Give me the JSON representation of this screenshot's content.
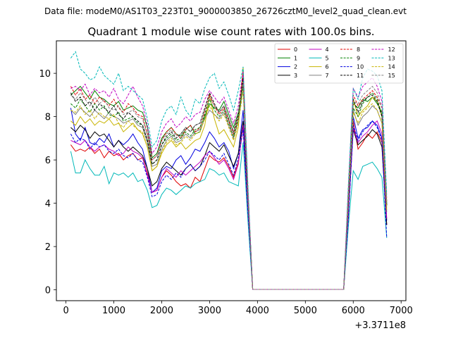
{
  "suptitle": "Data file: modeM0/AS1T03_223T01_9000003850_26726cztM0_level2_quad_clean.evt",
  "chart_data": {
    "type": "line",
    "title": "Quadrant 1 module wise count rates with 100.0s bins.",
    "xlabel": "",
    "ylabel": "",
    "x_offset_label": "+3.3711e8",
    "xlim": [
      -200,
      7100
    ],
    "ylim": [
      -0.5,
      11.5
    ],
    "xticks": [
      0,
      1000,
      2000,
      3000,
      4000,
      5000,
      6000,
      7000
    ],
    "yticks": [
      0,
      2,
      4,
      6,
      8,
      10
    ],
    "grid": false,
    "legend_placement": "top-right",
    "x": [
      100,
      200,
      300,
      400,
      500,
      600,
      700,
      800,
      900,
      1000,
      1100,
      1200,
      1300,
      1400,
      1500,
      1600,
      1700,
      1800,
      1900,
      2000,
      2100,
      2200,
      2300,
      2400,
      2500,
      2600,
      2700,
      2800,
      2900,
      3000,
      3100,
      3200,
      3300,
      3400,
      3500,
      3600,
      3700,
      3800,
      3900,
      4000,
      4500,
      5000,
      5500,
      5800,
      5900,
      6000,
      6100,
      6200,
      6300,
      6400,
      6500,
      6600,
      6700
    ],
    "series": [
      {
        "name": "0",
        "color": "#e00000",
        "dash": "solid",
        "values": [
          6.7,
          6.4,
          6.5,
          6.4,
          6.6,
          6.3,
          6.5,
          6.1,
          6.4,
          6.2,
          6.3,
          6.0,
          6.2,
          6.3,
          6.0,
          6.1,
          5.4,
          4.5,
          4.6,
          5.2,
          5.5,
          5.3,
          5.0,
          4.8,
          4.9,
          4.7,
          5.2,
          5.0,
          5.6,
          6.2,
          6.0,
          5.9,
          6.1,
          5.7,
          5.2,
          5.9,
          7.5,
          3.5,
          0.02,
          0.02,
          0.02,
          0.02,
          0.02,
          0.02,
          3.5,
          7.8,
          6.5,
          6.8,
          7.2,
          7.0,
          7.3,
          6.8,
          3.0
        ]
      },
      {
        "name": "1",
        "color": "#008000",
        "dash": "solid",
        "values": [
          9.0,
          9.2,
          9.4,
          9.1,
          8.8,
          9.2,
          8.9,
          8.8,
          8.6,
          8.5,
          8.7,
          8.3,
          8.4,
          8.5,
          8.3,
          8.2,
          7.5,
          6.1,
          6.3,
          7.0,
          7.3,
          7.5,
          7.2,
          7.1,
          7.4,
          7.6,
          7.2,
          7.3,
          8.0,
          8.6,
          8.4,
          8.3,
          8.7,
          8.1,
          7.5,
          8.2,
          9.6,
          4.5,
          0.02,
          0.02,
          0.02,
          0.02,
          0.02,
          0.02,
          4.5,
          8.6,
          8.4,
          8.8,
          8.7,
          8.9,
          8.6,
          8.2,
          4.0
        ]
      },
      {
        "name": "2",
        "color": "#0000e0",
        "dash": "solid",
        "values": [
          8.4,
          7.2,
          6.9,
          7.5,
          6.8,
          6.7,
          7.0,
          6.8,
          7.2,
          6.6,
          6.9,
          6.7,
          6.9,
          7.2,
          6.8,
          6.5,
          5.6,
          4.5,
          4.7,
          5.5,
          5.7,
          5.6,
          6.0,
          6.2,
          5.8,
          6.1,
          6.5,
          6.4,
          6.8,
          7.3,
          7.0,
          6.6,
          6.8,
          6.4,
          5.6,
          6.3,
          8.3,
          4.0,
          0.02,
          0.02,
          0.02,
          0.02,
          0.02,
          0.02,
          3.8,
          8.0,
          7.0,
          7.4,
          7.5,
          7.8,
          7.6,
          7.0,
          3.2
        ]
      },
      {
        "name": "3",
        "color": "#000000",
        "dash": "solid",
        "values": [
          7.5,
          7.3,
          7.6,
          7.4,
          7.0,
          7.3,
          7.1,
          7.2,
          6.9,
          6.6,
          6.9,
          6.6,
          6.4,
          6.6,
          6.4,
          6.2,
          5.6,
          4.8,
          5.0,
          5.6,
          5.9,
          5.7,
          5.5,
          5.3,
          5.6,
          5.8,
          5.5,
          5.7,
          6.2,
          6.8,
          6.6,
          6.4,
          6.7,
          6.2,
          5.7,
          6.3,
          7.8,
          3.9,
          0.02,
          0.02,
          0.02,
          0.02,
          0.02,
          0.02,
          3.6,
          7.4,
          6.7,
          6.9,
          7.1,
          7.4,
          7.2,
          6.6,
          3.0
        ]
      },
      {
        "name": "4",
        "color": "#c000c0",
        "dash": "solid",
        "values": [
          6.9,
          6.8,
          6.7,
          6.9,
          6.6,
          6.4,
          6.6,
          6.7,
          6.5,
          6.4,
          6.2,
          6.3,
          6.6,
          6.4,
          6.3,
          6.1,
          5.3,
          4.5,
          4.6,
          5.2,
          5.6,
          5.4,
          5.2,
          5.5,
          5.3,
          5.5,
          5.7,
          5.9,
          6.2,
          6.4,
          6.1,
          5.8,
          6.0,
          5.6,
          5.1,
          5.8,
          7.6,
          3.7,
          0.02,
          0.02,
          0.02,
          0.02,
          0.02,
          0.02,
          3.5,
          7.5,
          6.8,
          7.1,
          7.3,
          7.6,
          7.8,
          7.2,
          3.3
        ]
      },
      {
        "name": "5",
        "color": "#00b8b8",
        "dash": "solid",
        "values": [
          6.4,
          5.4,
          5.4,
          6.0,
          5.6,
          5.3,
          5.3,
          5.7,
          4.9,
          5.4,
          5.3,
          5.4,
          5.2,
          5.4,
          5.0,
          5.1,
          4.6,
          3.8,
          3.9,
          4.4,
          4.7,
          4.6,
          4.4,
          4.6,
          4.8,
          4.7,
          4.9,
          5.0,
          5.1,
          5.6,
          5.5,
          5.3,
          5.4,
          5.0,
          4.9,
          4.8,
          6.8,
          3.2,
          0.02,
          0.02,
          0.02,
          0.02,
          0.02,
          0.02,
          3.0,
          5.5,
          5.1,
          5.7,
          5.8,
          5.9,
          5.6,
          5.2,
          2.4
        ]
      },
      {
        "name": "6",
        "color": "#c8b400",
        "dash": "solid",
        "values": [
          7.8,
          7.6,
          8.0,
          7.7,
          7.9,
          7.6,
          7.8,
          7.7,
          7.9,
          7.6,
          7.7,
          7.3,
          7.5,
          7.7,
          7.4,
          7.2,
          6.6,
          5.5,
          5.7,
          6.3,
          6.7,
          6.9,
          6.6,
          6.8,
          6.5,
          6.7,
          6.9,
          7.0,
          7.6,
          9.0,
          7.9,
          7.2,
          7.4,
          7.0,
          6.6,
          7.5,
          10.3,
          4.6,
          0.02,
          0.02,
          0.02,
          0.02,
          0.02,
          0.02,
          4.3,
          8.8,
          8.0,
          8.3,
          8.5,
          8.9,
          8.7,
          8.0,
          3.8
        ]
      },
      {
        "name": "7",
        "color": "#808080",
        "dash": "solid",
        "values": [
          8.3,
          8.1,
          8.4,
          8.2,
          8.0,
          8.3,
          8.1,
          7.9,
          8.2,
          8.0,
          7.9,
          7.7,
          7.8,
          7.9,
          7.6,
          7.5,
          6.8,
          5.7,
          5.8,
          6.5,
          6.9,
          7.1,
          6.8,
          6.9,
          7.2,
          7.0,
          7.3,
          7.4,
          7.9,
          8.3,
          8.1,
          7.9,
          8.2,
          7.6,
          7.0,
          7.8,
          9.5,
          4.3,
          0.02,
          0.02,
          0.02,
          0.02,
          0.02,
          0.02,
          4.2,
          8.3,
          7.6,
          8.0,
          8.2,
          8.5,
          8.3,
          7.7,
          3.6
        ]
      },
      {
        "name": "8",
        "color": "#e00000",
        "dash": "dashed",
        "values": [
          9.4,
          9.0,
          9.3,
          8.8,
          9.0,
          8.6,
          8.9,
          8.7,
          8.5,
          8.8,
          8.4,
          8.2,
          8.6,
          8.4,
          8.1,
          8.0,
          7.2,
          6.0,
          6.2,
          6.9,
          7.3,
          7.5,
          7.2,
          7.0,
          7.4,
          7.6,
          7.3,
          7.5,
          8.2,
          9.0,
          8.5,
          8.1,
          8.4,
          7.8,
          7.2,
          8.0,
          10.0,
          4.6,
          0.02,
          0.02,
          0.02,
          0.02,
          0.02,
          0.02,
          4.6,
          9.0,
          8.5,
          8.8,
          9.0,
          9.2,
          8.9,
          8.4,
          4.1
        ]
      },
      {
        "name": "9",
        "color": "#008000",
        "dash": "dashed",
        "values": [
          8.6,
          8.4,
          8.8,
          8.5,
          8.2,
          8.6,
          8.3,
          8.5,
          8.1,
          8.0,
          8.2,
          7.8,
          7.9,
          8.0,
          7.7,
          7.6,
          6.9,
          5.8,
          6.0,
          6.7,
          7.0,
          7.2,
          6.9,
          7.0,
          7.3,
          7.1,
          7.4,
          7.5,
          8.1,
          8.8,
          8.3,
          8.0,
          8.3,
          7.7,
          7.1,
          7.9,
          9.4,
          4.4,
          0.02,
          0.02,
          0.02,
          0.02,
          0.02,
          0.02,
          4.4,
          8.4,
          8.0,
          8.6,
          8.9,
          9.1,
          8.8,
          8.1,
          3.9
        ]
      },
      {
        "name": "10",
        "color": "#0000e0",
        "dash": "dashed",
        "values": [
          7.2,
          6.8,
          7.0,
          6.9,
          6.5,
          6.8,
          6.6,
          6.7,
          6.4,
          6.3,
          6.5,
          6.2,
          6.1,
          6.3,
          6.0,
          5.9,
          5.2,
          4.3,
          4.4,
          5.0,
          5.3,
          5.1,
          5.4,
          5.2,
          5.6,
          5.8,
          5.5,
          5.7,
          6.0,
          6.4,
          6.2,
          6.0,
          6.3,
          5.8,
          5.3,
          6.1,
          7.4,
          3.6,
          0.02,
          0.02,
          0.02,
          0.02,
          0.02,
          0.02,
          3.4,
          7.6,
          6.9,
          7.3,
          7.6,
          7.8,
          7.5,
          6.9,
          2.4
        ]
      },
      {
        "name": "11",
        "color": "#000000",
        "dash": "dashed",
        "values": [
          9.1,
          8.7,
          8.9,
          8.5,
          8.7,
          8.3,
          8.6,
          8.4,
          8.2,
          8.5,
          8.1,
          7.9,
          8.2,
          8.0,
          7.8,
          7.6,
          6.9,
          5.8,
          6.0,
          6.7,
          7.1,
          7.3,
          7.0,
          7.2,
          7.5,
          7.3,
          7.6,
          7.7,
          8.4,
          9.1,
          8.6,
          8.2,
          8.5,
          7.9,
          7.3,
          8.1,
          9.8,
          4.5,
          0.02,
          0.02,
          0.02,
          0.02,
          0.02,
          0.02,
          4.5,
          8.8,
          8.2,
          8.7,
          8.9,
          9.0,
          8.7,
          8.0,
          3.9
        ]
      },
      {
        "name": "12",
        "color": "#c000c0",
        "dash": "dashed",
        "values": [
          9.3,
          9.4,
          9.2,
          9.5,
          9.0,
          9.3,
          9.1,
          9.2,
          8.9,
          9.3,
          8.8,
          8.6,
          9.0,
          9.4,
          8.9,
          8.5,
          7.6,
          6.3,
          6.6,
          7.3,
          7.7,
          7.9,
          7.5,
          7.7,
          8.0,
          7.8,
          8.1,
          8.2,
          8.8,
          9.2,
          8.9,
          8.6,
          8.9,
          8.3,
          7.7,
          8.5,
          10.1,
          4.7,
          0.02,
          0.02,
          0.02,
          0.02,
          0.02,
          0.02,
          4.8,
          9.3,
          8.9,
          9.4,
          9.6,
          9.8,
          9.4,
          8.7,
          4.2
        ]
      },
      {
        "name": "13",
        "color": "#00b8b8",
        "dash": "dashed",
        "values": [
          10.7,
          11.0,
          10.2,
          10.0,
          9.7,
          9.8,
          10.3,
          9.9,
          9.7,
          9.5,
          10.0,
          9.2,
          9.4,
          9.2,
          9.0,
          8.8,
          7.9,
          6.6,
          6.9,
          7.8,
          8.3,
          8.5,
          8.1,
          8.9,
          8.3,
          8.0,
          8.8,
          8.6,
          9.3,
          9.8,
          10.0,
          9.3,
          9.6,
          9.0,
          8.3,
          9.2,
          10.3,
          4.9,
          0.02,
          0.02,
          0.02,
          0.02,
          0.02,
          0.02,
          5.0,
          9.3,
          8.8,
          9.8,
          10.2,
          10.1,
          9.9,
          9.2,
          4.4
        ]
      },
      {
        "name": "14",
        "color": "#c8b400",
        "dash": "dashed",
        "values": [
          8.3,
          8.2,
          8.5,
          8.1,
          8.3,
          7.9,
          8.2,
          8.0,
          7.9,
          8.1,
          7.7,
          7.5,
          7.8,
          7.6,
          7.4,
          7.3,
          6.6,
          5.5,
          5.7,
          6.4,
          6.8,
          7.0,
          6.7,
          6.8,
          7.1,
          6.9,
          7.2,
          7.3,
          7.9,
          8.5,
          8.1,
          7.8,
          8.1,
          7.5,
          6.9,
          7.7,
          9.2,
          4.3,
          0.02,
          0.02,
          0.02,
          0.02,
          0.02,
          0.02,
          4.2,
          8.2,
          7.7,
          8.2,
          8.4,
          8.6,
          8.3,
          7.7,
          3.7
        ]
      },
      {
        "name": "15",
        "color": "#808080",
        "dash": "dashed",
        "values": [
          9.0,
          8.8,
          9.1,
          8.8,
          8.5,
          8.9,
          8.6,
          8.8,
          8.4,
          8.3,
          8.5,
          8.1,
          8.2,
          8.3,
          8.0,
          7.9,
          7.1,
          6.0,
          6.2,
          6.9,
          7.2,
          7.4,
          7.1,
          7.2,
          7.5,
          7.3,
          7.6,
          7.7,
          8.3,
          8.9,
          8.5,
          8.2,
          8.5,
          7.9,
          7.3,
          8.1,
          9.6,
          4.5,
          0.02,
          0.02,
          0.02,
          0.02,
          0.02,
          0.02,
          4.6,
          8.7,
          8.6,
          9.0,
          9.2,
          9.4,
          9.1,
          8.4,
          4.0
        ]
      }
    ]
  }
}
